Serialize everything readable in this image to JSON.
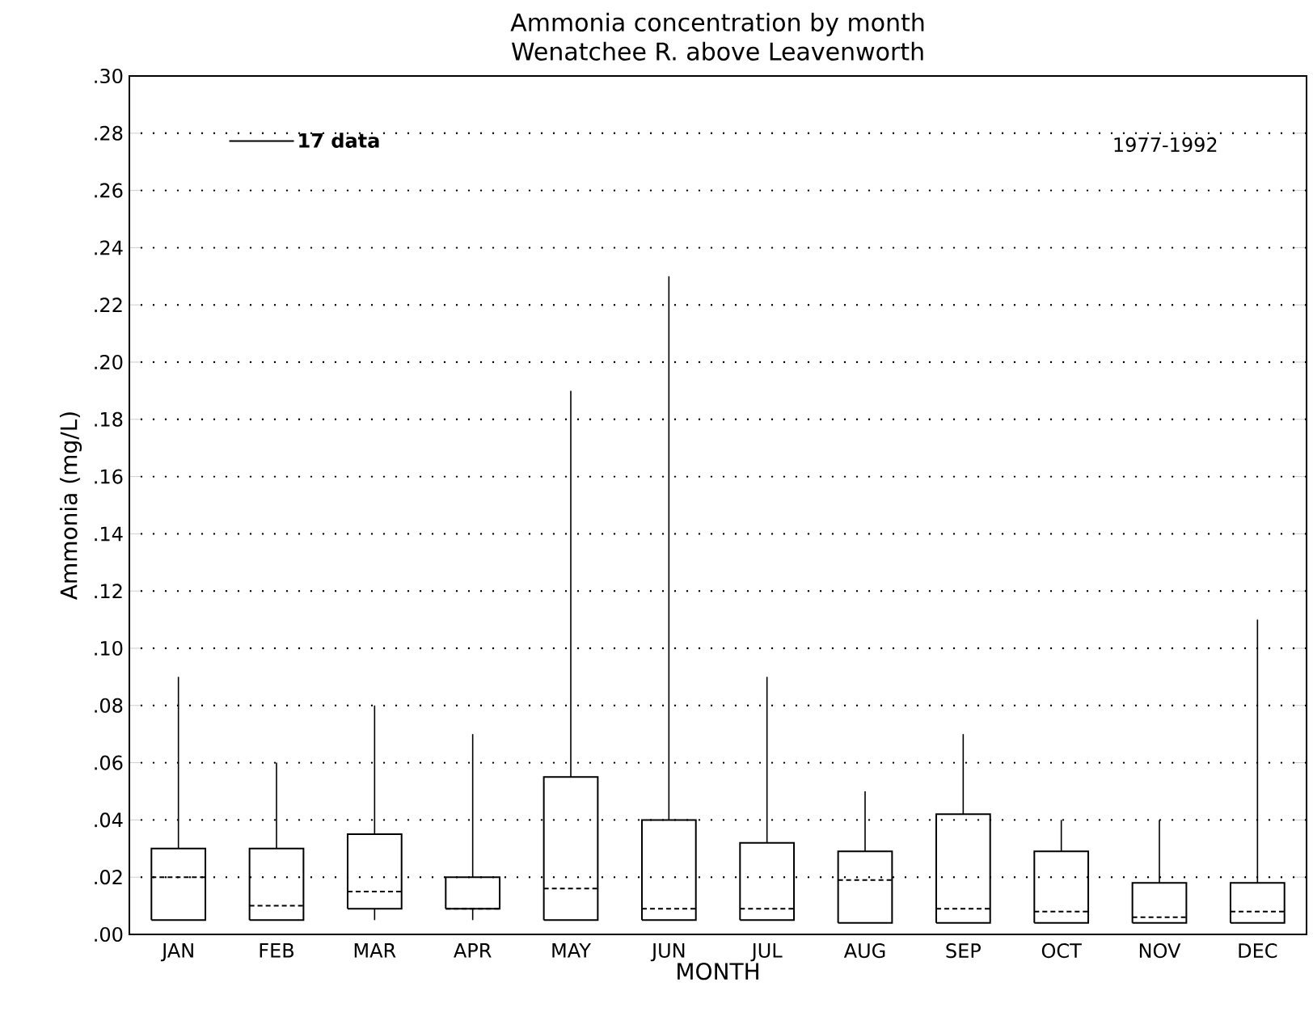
{
  "chart_data": {
    "type": "box",
    "title": "Ammonia concentration by month",
    "subtitle": "Wenatchee R. above Leavenworth",
    "xlabel": "MONTH",
    "ylabel": "Ammonia (mg/L)",
    "categories": [
      "JAN",
      "FEB",
      "MAR",
      "APR",
      "MAY",
      "JUN",
      "JUL",
      "AUG",
      "SEP",
      "OCT",
      "NOV",
      "DEC"
    ],
    "color": "#000000",
    "boxes": [
      {
        "low": 0.005,
        "q1": 0.005,
        "median": 0.02,
        "q3": 0.03,
        "high": 0.09
      },
      {
        "low": 0.005,
        "q1": 0.005,
        "median": 0.01,
        "q3": 0.03,
        "high": 0.06
      },
      {
        "low": 0.005,
        "q1": 0.009,
        "median": 0.015,
        "q3": 0.035,
        "high": 0.08
      },
      {
        "low": 0.005,
        "q1": 0.009,
        "median": 0.009,
        "q3": 0.02,
        "high": 0.07
      },
      {
        "low": 0.005,
        "q1": 0.005,
        "median": 0.016,
        "q3": 0.055,
        "high": 0.19
      },
      {
        "low": 0.005,
        "q1": 0.005,
        "median": 0.009,
        "q3": 0.04,
        "high": 0.23
      },
      {
        "low": 0.005,
        "q1": 0.005,
        "median": 0.009,
        "q3": 0.032,
        "high": 0.09
      },
      {
        "low": 0.004,
        "q1": 0.004,
        "median": 0.019,
        "q3": 0.029,
        "high": 0.05
      },
      {
        "low": 0.004,
        "q1": 0.004,
        "median": 0.009,
        "q3": 0.042,
        "high": 0.07
      },
      {
        "low": 0.004,
        "q1": 0.004,
        "median": 0.008,
        "q3": 0.029,
        "high": 0.04
      },
      {
        "low": 0.004,
        "q1": 0.004,
        "median": 0.006,
        "q3": 0.018,
        "high": 0.04
      },
      {
        "low": 0.004,
        "q1": 0.004,
        "median": 0.008,
        "q3": 0.018,
        "high": 0.11
      }
    ],
    "ylim": [
      0,
      0.3
    ],
    "yticks": [
      {
        "value": 0,
        "label": ".00"
      },
      {
        "value": 0.02,
        "label": ".02"
      },
      {
        "value": 0.04,
        "label": ".04"
      },
      {
        "value": 0.06,
        "label": ".06"
      },
      {
        "value": 0.08,
        "label": ".08"
      },
      {
        "value": 0.1,
        "label": ".10"
      },
      {
        "value": 0.12,
        "label": ".12"
      },
      {
        "value": 0.14,
        "label": ".14"
      },
      {
        "value": 0.16,
        "label": ".16"
      },
      {
        "value": 0.18,
        "label": ".18"
      },
      {
        "value": 0.2,
        "label": ".20"
      },
      {
        "value": 0.22,
        "label": ".22"
      },
      {
        "value": 0.24,
        "label": ".24"
      },
      {
        "value": 0.26,
        "label": ".26"
      },
      {
        "value": 0.28,
        "label": ".28"
      },
      {
        "value": 0.3,
        "label": ".30"
      }
    ],
    "grid": "y",
    "annotations": [
      "17 data",
      "1977-1992"
    ]
  }
}
